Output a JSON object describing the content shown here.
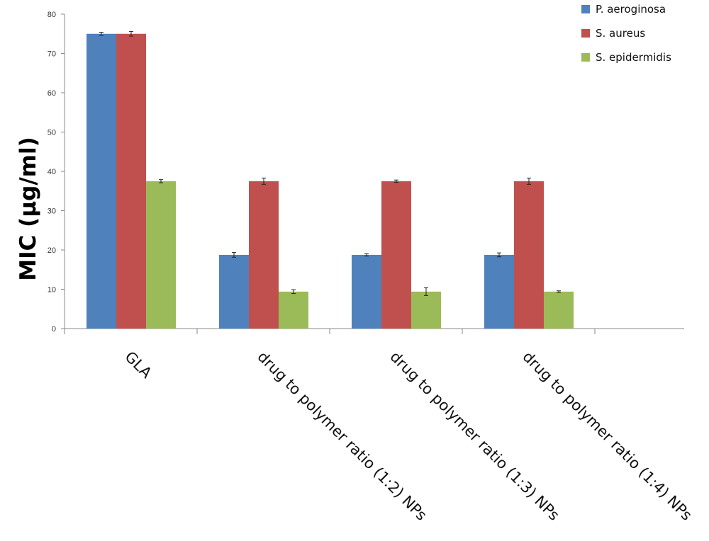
{
  "chart_data": {
    "type": "bar",
    "title": "",
    "xlabel": "",
    "ylabel": "MIC (µg/ml)",
    "ylim": [
      0,
      80
    ],
    "yticks": [
      0,
      10,
      20,
      30,
      40,
      50,
      60,
      70,
      80
    ],
    "categories": [
      "GLA",
      "drug to polymer ratio (1:2) NPs",
      "drug to polymer ratio (1:3) NPs",
      "drug to polymer ratio (1:4) NPs"
    ],
    "series": [
      {
        "name": "P. aeroginosa",
        "color": "#4f81bd",
        "values": [
          75,
          18.75,
          18.75,
          18.75
        ],
        "errors": [
          0.4,
          0.6,
          0.3,
          0.5
        ]
      },
      {
        "name": "S. aureus",
        "color": "#c0504d",
        "values": [
          75,
          37.5,
          37.5,
          37.5
        ],
        "errors": [
          0.6,
          0.8,
          0.3,
          0.8
        ]
      },
      {
        "name": "S. epidermidis",
        "color": "#9bbb59",
        "values": [
          37.5,
          9.4,
          9.4,
          9.4
        ],
        "errors": [
          0.4,
          0.5,
          1.0,
          0.2
        ]
      }
    ],
    "grid": false,
    "legend": "top-right"
  }
}
